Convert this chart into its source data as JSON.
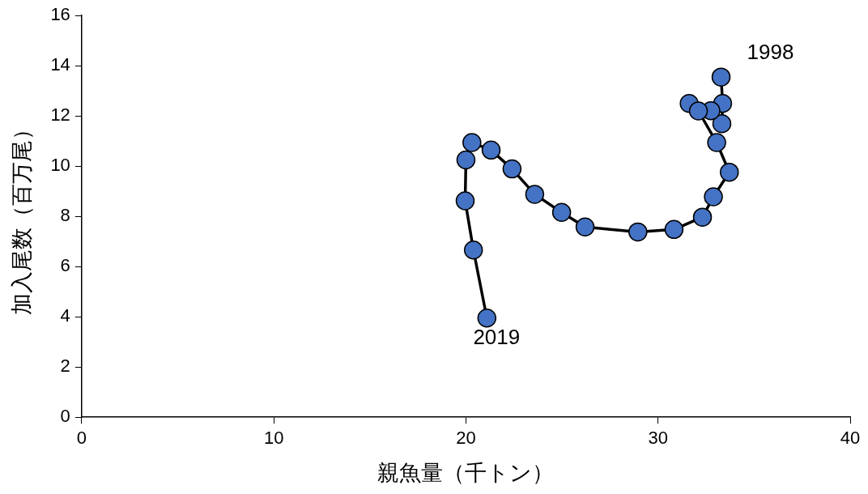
{
  "chart_data": {
    "type": "line",
    "xlabel": "親魚量（千トン）",
    "ylabel": "加入尾数（百万尾）",
    "x": [
      33.28,
      33.36,
      33.32,
      32.75,
      31.62,
      32.1,
      33.05,
      33.71,
      32.88,
      32.31,
      30.83,
      28.95,
      26.2,
      24.98,
      23.58,
      22.4,
      21.31,
      20.31,
      20.0,
      19.96,
      20.39,
      21.09
    ],
    "series": [
      {
        "color": "#4472c4",
        "values": [
          13.55,
          12.5,
          11.69,
          12.21,
          12.5,
          12.2,
          10.94,
          9.76,
          8.78,
          7.97,
          7.48,
          7.38,
          7.58,
          8.16,
          8.88,
          9.89,
          10.64,
          10.94,
          10.25,
          8.62,
          6.66,
          3.95
        ]
      }
    ],
    "xlim": [
      0,
      40
    ],
    "xticks": [
      0,
      10,
      20,
      30,
      40
    ],
    "ylim": [
      0,
      16
    ],
    "yticks": [
      0,
      2,
      4,
      6,
      8,
      10,
      12,
      14,
      16
    ],
    "marker": "circle",
    "line_style": "solid",
    "grid": false,
    "legend": false,
    "annotations": [
      {
        "text": "1998",
        "x": 33.28,
        "y": 13.55
      },
      {
        "text": "2019",
        "x": 21.09,
        "y": 3.95
      }
    ]
  }
}
